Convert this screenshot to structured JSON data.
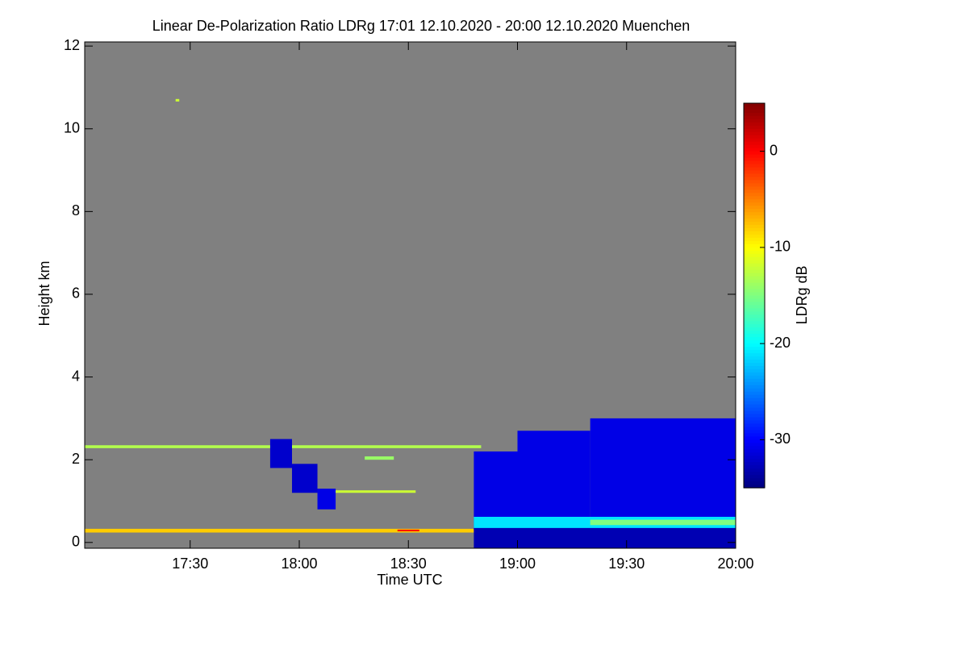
{
  "chart_data": {
    "type": "heatmap",
    "title": "Linear De-Polarization Ratio LDRg   17:01 12.10.2020 - 20:00 12.10.2020 Muenchen",
    "x_label": "Time UTC",
    "y_label": "Height km",
    "colorbar_label": "LDRg dB",
    "background_color": "#808080",
    "xlim": [
      1021,
      1200
    ],
    "xticks": [
      {
        "value": 1050,
        "label": "17:30"
      },
      {
        "value": 1080,
        "label": "18:00"
      },
      {
        "value": 1110,
        "label": "18:30"
      },
      {
        "value": 1140,
        "label": "19:00"
      },
      {
        "value": 1170,
        "label": "19:30"
      },
      {
        "value": 1200,
        "label": "20:00"
      }
    ],
    "ylim": [
      -0.14,
      12.1
    ],
    "yticks": [
      0,
      2,
      4,
      6,
      8,
      10,
      12
    ],
    "clim": [
      -35,
      5
    ],
    "cticks": [
      0,
      -10,
      -20,
      -30
    ],
    "colormap": "jet",
    "regions": [
      {
        "x": [
          1021,
          1128
        ],
        "y": [
          0.24,
          0.33
        ],
        "value": -8
      },
      {
        "x": [
          1021,
          1130
        ],
        "y": [
          2.28,
          2.35
        ],
        "value": -13
      },
      {
        "x": [
          1128,
          1140
        ],
        "y": [
          0.3,
          2.2
        ],
        "value": -31
      },
      {
        "x": [
          1140,
          1160
        ],
        "y": [
          0.2,
          2.7
        ],
        "value": -31
      },
      {
        "x": [
          1160,
          1200
        ],
        "y": [
          0.2,
          3.0
        ],
        "value": -31
      },
      {
        "x": [
          1128,
          1200
        ],
        "y": [
          -0.14,
          0.35
        ],
        "value": -33
      },
      {
        "x": [
          1128,
          1200
        ],
        "y": [
          0.35,
          0.62
        ],
        "value": -21
      },
      {
        "x": [
          1160,
          1200
        ],
        "y": [
          0.42,
          0.55
        ],
        "value": -15
      },
      {
        "x": [
          1072,
          1078
        ],
        "y": [
          1.8,
          2.5
        ],
        "value": -32
      },
      {
        "x": [
          1078,
          1085
        ],
        "y": [
          1.2,
          1.9
        ],
        "value": -32
      },
      {
        "x": [
          1085,
          1090
        ],
        "y": [
          0.8,
          1.3
        ],
        "value": -31
      },
      {
        "x": [
          1090,
          1112
        ],
        "y": [
          1.2,
          1.26
        ],
        "value": -12
      },
      {
        "x": [
          1098,
          1106
        ],
        "y": [
          2.0,
          2.08
        ],
        "value": -14
      },
      {
        "x": [
          1107,
          1113
        ],
        "y": [
          0.27,
          0.31
        ],
        "value": 0
      },
      {
        "x": [
          1046,
          1047
        ],
        "y": [
          10.66,
          10.72
        ],
        "value": -12
      }
    ]
  }
}
